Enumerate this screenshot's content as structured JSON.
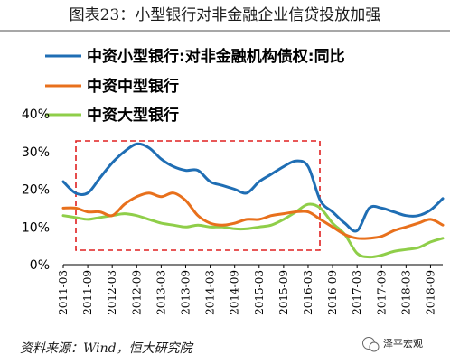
{
  "header": {
    "title": "图表23：小型银行对非金融企业信贷投放加强"
  },
  "footer": {
    "source": "资料来源：Wind，恒大研究院",
    "watermark": "泽平宏观"
  },
  "chart_data": {
    "type": "line",
    "title": "图表23：小型银行对非金融企业信贷投放加强",
    "x_ticks": [
      "2011-03",
      "2011-09",
      "2012-03",
      "2012-09",
      "2013-03",
      "2013-09",
      "2014-03",
      "2014-09",
      "2015-03",
      "2015-09",
      "2016-03",
      "2016-09",
      "2017-03",
      "2017-09",
      "2018-03",
      "2018-09"
    ],
    "y_ticks": [
      "0%",
      "10%",
      "20%",
      "30%",
      "40%"
    ],
    "ylim": [
      0,
      40
    ],
    "legend_position": "top-left",
    "grid": false,
    "annotation": "red dashed rectangle highlighting 2011-09 to 2016-03",
    "x": [
      "2011-03",
      "2011-06",
      "2011-09",
      "2011-12",
      "2012-03",
      "2012-06",
      "2012-09",
      "2012-12",
      "2013-03",
      "2013-06",
      "2013-09",
      "2013-12",
      "2014-03",
      "2014-06",
      "2014-09",
      "2014-12",
      "2015-03",
      "2015-06",
      "2015-09",
      "2015-12",
      "2016-03",
      "2016-06",
      "2016-09",
      "2016-12",
      "2017-03",
      "2017-06",
      "2017-09",
      "2017-12",
      "2018-03",
      "2018-06",
      "2018-09",
      "2018-12"
    ],
    "series": [
      {
        "name": "中资小型银行:对非金融机构债权:同比",
        "color": "#1f6eb4",
        "values": [
          22,
          19,
          19,
          23,
          27,
          30,
          32,
          31,
          28,
          26,
          25,
          25,
          22,
          21,
          20,
          19,
          22,
          24,
          26,
          27.5,
          26,
          17,
          14,
          11,
          9,
          15,
          15,
          14,
          13,
          13,
          14.5,
          17.5
        ]
      },
      {
        "name": "中资中型银行",
        "color": "#e8701c",
        "values": [
          15,
          15,
          14,
          14,
          13,
          16,
          18,
          19,
          18,
          19,
          17,
          13,
          11,
          10.5,
          11,
          12,
          12,
          13,
          13.5,
          14,
          14,
          12,
          10,
          8,
          7,
          7,
          7.5,
          9,
          10,
          11,
          12,
          10.5
        ]
      },
      {
        "name": "中资大型银行",
        "color": "#8fce49",
        "values": [
          13,
          12.5,
          12,
          12.5,
          13,
          13.5,
          13,
          12,
          11,
          10.5,
          10,
          10.5,
          10,
          10,
          9.5,
          9.5,
          10,
          10.5,
          12,
          14,
          16,
          15,
          11,
          8,
          3,
          2,
          2.5,
          3.5,
          4,
          4.5,
          6,
          7
        ]
      }
    ]
  }
}
